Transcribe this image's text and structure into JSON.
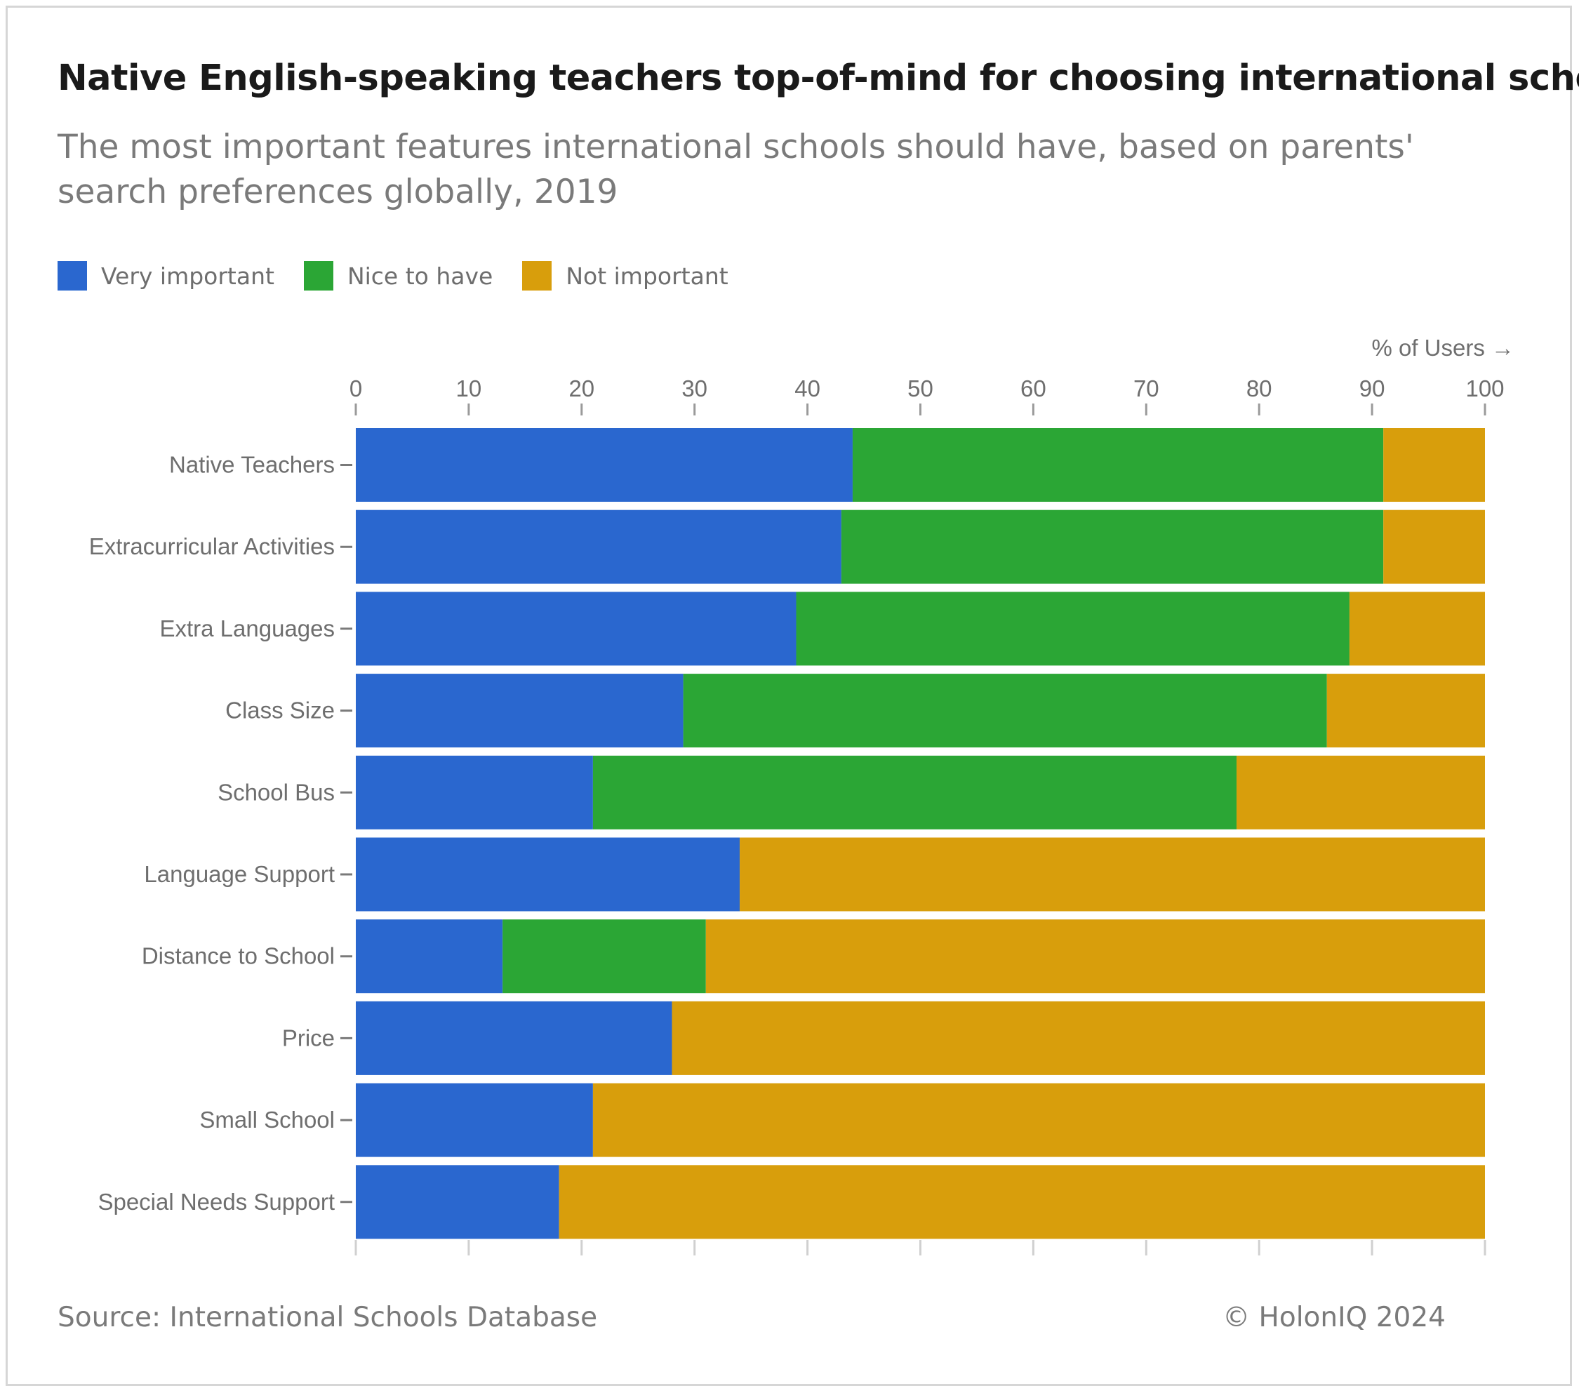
{
  "title": "Native English-speaking teachers top-of-mind for choosing international schools",
  "subtitle": "The most important features international schools should have, based on parents' search preferences globally, 2019",
  "source": "Source: International Schools Database",
  "copyright": "© HolonIQ 2024",
  "colors": {
    "very_important": "#2a67cf",
    "nice_to_have": "#2ba635",
    "not_important": "#d89e0c"
  },
  "chart_data": {
    "type": "bar",
    "orientation": "horizontal",
    "stacked": true,
    "xlabel": "% of Users →",
    "xlim": [
      0,
      100
    ],
    "xticks": [
      0,
      10,
      20,
      30,
      40,
      50,
      60,
      70,
      80,
      90,
      100
    ],
    "legend_position": "top-left",
    "grid": false,
    "categories": [
      "Native Teachers",
      "Extracurricular Activities",
      "Extra Languages",
      "Class Size",
      "School Bus",
      "Language Support",
      "Distance to School",
      "Price",
      "Small School",
      "Special Needs Support"
    ],
    "series": [
      {
        "name": "Very important",
        "color": "#2a67cf",
        "values": [
          44,
          43,
          39,
          29,
          21,
          34,
          13,
          28,
          21,
          18
        ]
      },
      {
        "name": "Nice to have",
        "color": "#2ba635",
        "values": [
          47,
          48,
          49,
          57,
          57,
          0,
          18,
          0,
          0,
          0
        ]
      },
      {
        "name": "Not important",
        "color": "#d89e0c",
        "values": [
          9,
          9,
          12,
          14,
          22,
          66,
          69,
          72,
          79,
          82
        ]
      }
    ]
  }
}
